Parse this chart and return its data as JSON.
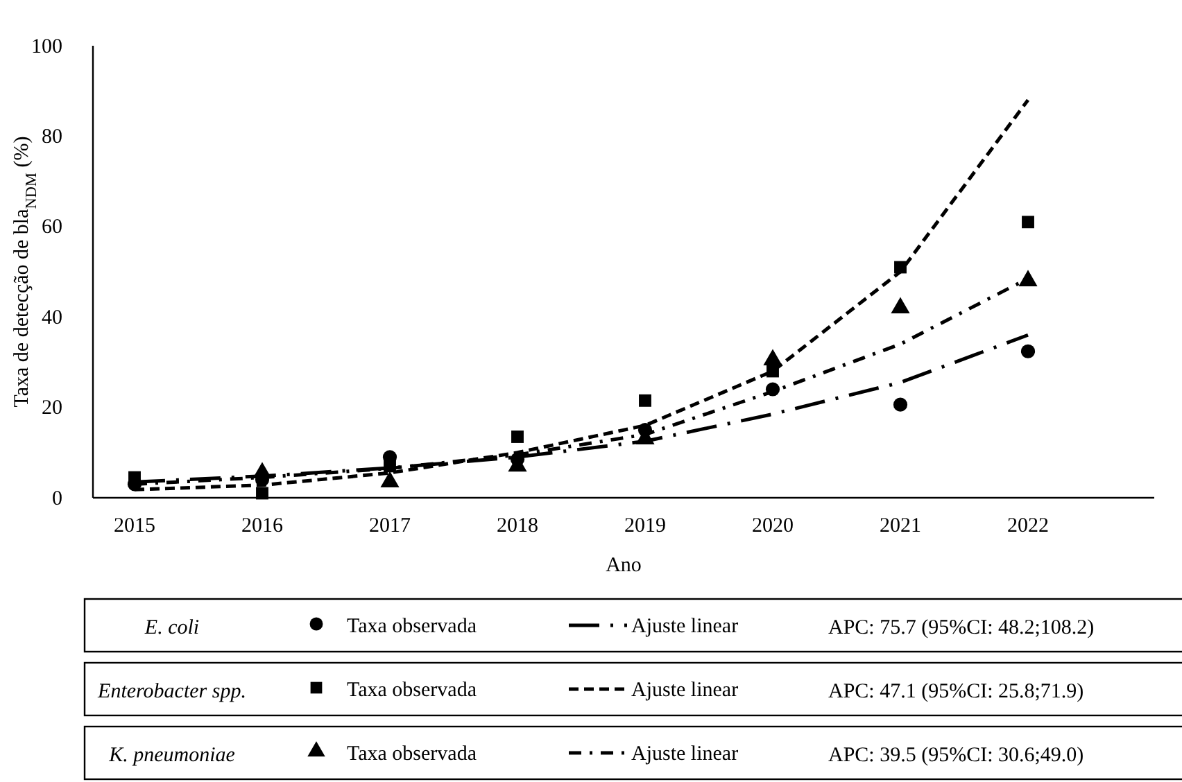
{
  "chart_data": {
    "type": "line",
    "ylabel": "Taxa de detecção de bla$_{NDM}$ (%)",
    "xlabel": "Ano",
    "categories": [
      "2015",
      "2016",
      "2017",
      "2018",
      "2019",
      "2020",
      "2021",
      "2022"
    ],
    "ylim": [
      0,
      100
    ],
    "yticks": [
      0,
      20,
      40,
      60,
      80,
      100
    ],
    "grid": false,
    "legend": "bottom",
    "series": [
      {
        "name": "Taxa observada",
        "type": "scatter",
        "marker": "circle",
        "color": "#000000",
        "values": [
          3,
          4,
          9,
          8.5,
          15,
          24,
          20.6,
          32.4
        ]
      },
      {
        "name": "Ajuste linear",
        "type": "line",
        "line_style": "longdashdot",
        "color": "#000000",
        "values": [
          3.5,
          4.8,
          6.6,
          9,
          12.5,
          18.5,
          25.5,
          36
        ]
      },
      {
        "name": "Taxa observada",
        "type": "scatter",
        "marker": "square",
        "color": "#000000",
        "values": [
          4.5,
          1,
          7,
          13.5,
          21.5,
          28,
          51,
          61
        ]
      },
      {
        "name": "Ajuste linear",
        "type": "line",
        "line_style": "dashed",
        "color": "#000000",
        "values": [
          1.8,
          2.8,
          5.5,
          10,
          16,
          28,
          50,
          88
        ]
      },
      {
        "name": "Taxa observada",
        "type": "scatter",
        "marker": "triangle",
        "color": "#000000",
        "values": [
          null,
          5.5,
          3.5,
          7,
          13,
          30.5,
          42,
          48
        ]
      },
      {
        "name": "Ajuste linear",
        "type": "line",
        "line_style": "dashdot",
        "color": "#000000",
        "values": [
          3,
          4.5,
          6.5,
          9.5,
          14,
          23.5,
          34,
          48.5
        ]
      }
    ],
    "annotations": [
      "E. coli",
      "APC: 75.7 (95%CI: 48.2;108.2)",
      "Enterobacter spp.",
      "APC: 47.1 (95%CI: 25.8;71.9)",
      "K. pneumoniae",
      "APC: 39.5 (95%CI: 30.6;49.0)"
    ]
  }
}
